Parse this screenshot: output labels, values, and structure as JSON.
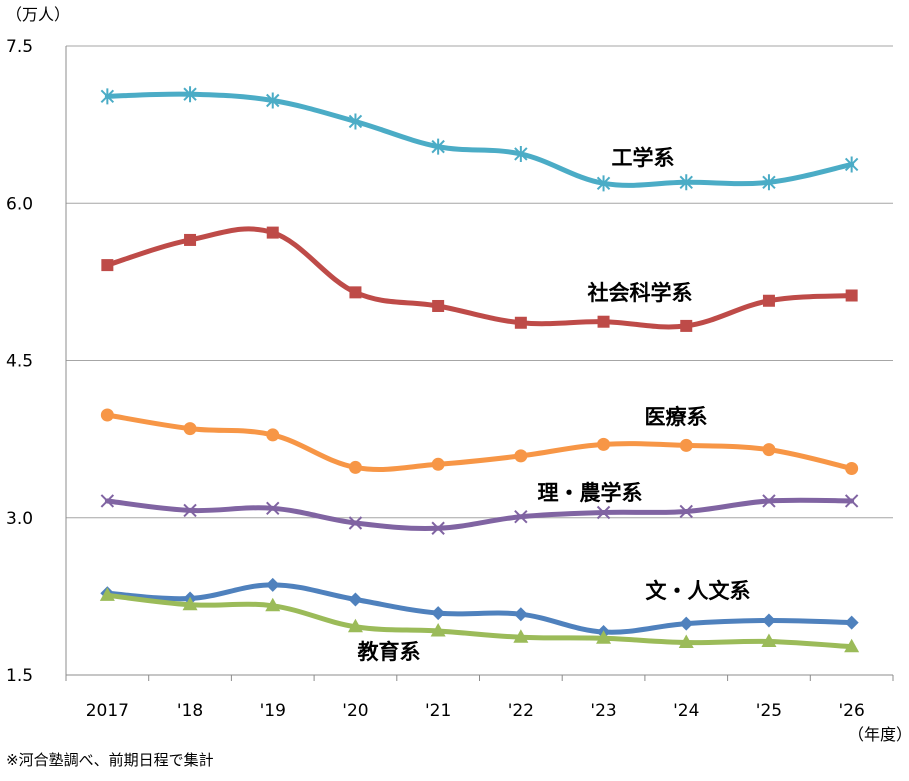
{
  "chart_data": {
    "type": "line",
    "y_unit": "（万人）",
    "x_unit": "（年度）",
    "note": "※河合塾調べ、前期日程で集計",
    "categories": [
      "2017",
      "'18",
      "'19",
      "'20",
      "'21",
      "'22",
      "'23",
      "'24",
      "'25",
      "'26"
    ],
    "ylim": [
      1.5,
      7.5
    ],
    "yticks": [
      "7.5",
      "6.0",
      "4.5",
      "3.0",
      "1.5"
    ],
    "ytick_values": [
      7.5,
      6.0,
      4.5,
      3.0,
      1.5
    ],
    "grid": true,
    "series": [
      {
        "name": "工学系",
        "color": "#4BACC6",
        "marker": "star",
        "values": [
          7.02,
          7.04,
          6.98,
          6.78,
          6.54,
          6.47,
          6.19,
          6.2,
          6.2,
          6.37
        ]
      },
      {
        "name": "社会科学系",
        "color": "#BE4B48",
        "marker": "square",
        "values": [
          5.41,
          5.65,
          5.72,
          5.15,
          5.02,
          4.86,
          4.87,
          4.83,
          5.07,
          5.12
        ]
      },
      {
        "name": "医療系",
        "color": "#F79646",
        "marker": "circle",
        "values": [
          3.98,
          3.85,
          3.79,
          3.48,
          3.51,
          3.59,
          3.7,
          3.69,
          3.65,
          3.47
        ]
      },
      {
        "name": "理・農学系",
        "color": "#8064A2",
        "marker": "x",
        "values": [
          3.16,
          3.07,
          3.09,
          2.95,
          2.9,
          3.01,
          3.05,
          3.06,
          3.16,
          3.16
        ]
      },
      {
        "name": "文・人文系",
        "color": "#4F81BD",
        "marker": "diamond",
        "values": [
          2.28,
          2.23,
          2.36,
          2.22,
          2.09,
          2.08,
          1.91,
          1.99,
          2.02,
          2.0
        ]
      },
      {
        "name": "教育系",
        "color": "#9BBB59",
        "marker": "triangle",
        "values": [
          2.26,
          2.17,
          2.16,
          1.96,
          1.92,
          1.86,
          1.85,
          1.81,
          1.82,
          1.77
        ]
      }
    ]
  }
}
